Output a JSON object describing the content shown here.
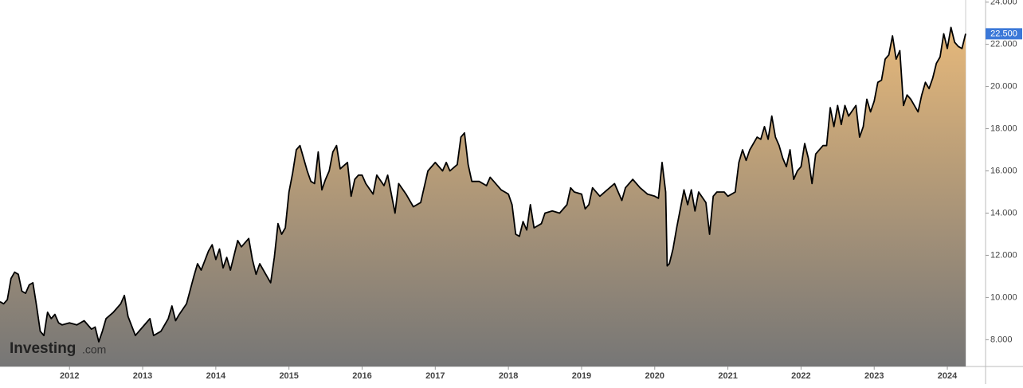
{
  "chart_data": {
    "type": "area",
    "x": [
      2011.05,
      2011.1,
      2011.15,
      2011.2,
      2011.25,
      2011.3,
      2011.35,
      2011.4,
      2011.45,
      2011.5,
      2011.55,
      2011.6,
      2011.65,
      2011.7,
      2011.75,
      2011.8,
      2011.85,
      2011.9,
      2012.0,
      2012.1,
      2012.2,
      2012.3,
      2012.35,
      2012.4,
      2012.45,
      2012.5,
      2012.6,
      2012.7,
      2012.75,
      2012.8,
      2012.9,
      2013.0,
      2013.1,
      2013.15,
      2013.25,
      2013.35,
      2013.4,
      2013.45,
      2013.5,
      2013.6,
      2013.7,
      2013.75,
      2013.8,
      2013.9,
      2013.95,
      2014.0,
      2014.05,
      2014.1,
      2014.15,
      2014.2,
      2014.3,
      2014.35,
      2014.45,
      2014.5,
      2014.55,
      2014.6,
      2014.7,
      2014.75,
      2014.8,
      2014.85,
      2014.9,
      2014.95,
      2015.0,
      2015.05,
      2015.1,
      2015.15,
      2015.25,
      2015.3,
      2015.35,
      2015.4,
      2015.45,
      2015.5,
      2015.55,
      2015.6,
      2015.65,
      2015.7,
      2015.8,
      2015.85,
      2015.9,
      2015.95,
      2016.0,
      2016.05,
      2016.15,
      2016.2,
      2016.3,
      2016.35,
      2016.45,
      2016.5,
      2016.6,
      2016.7,
      2016.8,
      2016.9,
      2017.0,
      2017.1,
      2017.15,
      2017.2,
      2017.3,
      2017.35,
      2017.4,
      2017.45,
      2017.5,
      2017.6,
      2017.7,
      2017.75,
      2017.8,
      2017.9,
      2018.0,
      2018.05,
      2018.1,
      2018.15,
      2018.2,
      2018.25,
      2018.3,
      2018.35,
      2018.45,
      2018.5,
      2018.6,
      2018.7,
      2018.8,
      2018.85,
      2018.9,
      2019.0,
      2019.05,
      2019.1,
      2019.15,
      2019.25,
      2019.35,
      2019.45,
      2019.55,
      2019.6,
      2019.7,
      2019.8,
      2019.9,
      2020.0,
      2020.05,
      2020.1,
      2020.15,
      2020.17,
      2020.2,
      2020.25,
      2020.3,
      2020.35,
      2020.4,
      2020.45,
      2020.5,
      2020.55,
      2020.6,
      2020.7,
      2020.75,
      2020.8,
      2020.85,
      2020.95,
      2021.0,
      2021.1,
      2021.15,
      2021.2,
      2021.25,
      2021.3,
      2021.4,
      2021.45,
      2021.5,
      2021.55,
      2021.6,
      2021.65,
      2021.7,
      2021.75,
      2021.8,
      2021.85,
      2021.9,
      2021.95,
      2022.0,
      2022.05,
      2022.1,
      2022.15,
      2022.2,
      2022.3,
      2022.35,
      2022.4,
      2022.45,
      2022.5,
      2022.55,
      2022.6,
      2022.65,
      2022.75,
      2022.8,
      2022.85,
      2022.9,
      2022.95,
      2023.0,
      2023.05,
      2023.1,
      2023.15,
      2023.2,
      2023.25,
      2023.3,
      2023.35,
      2023.4,
      2023.45,
      2023.5,
      2023.55,
      2023.6,
      2023.65,
      2023.7,
      2023.75,
      2023.8,
      2023.85,
      2023.9,
      2023.95,
      2024.0,
      2024.05,
      2024.1,
      2024.15,
      2024.2,
      2024.25
    ],
    "series": [
      {
        "color": "#000000",
        "fill_top": "#e6b87a",
        "fill_bottom": "#767676",
        "values": [
          9.8,
          9.7,
          9.9,
          10.9,
          11.2,
          11.1,
          10.3,
          10.2,
          10.6,
          10.7,
          9.6,
          8.4,
          8.2,
          9.3,
          9.0,
          9.2,
          8.8,
          8.7,
          8.8,
          8.7,
          8.9,
          8.5,
          8.6,
          7.9,
          8.4,
          9.0,
          9.3,
          9.7,
          10.1,
          9.1,
          8.2,
          8.6,
          9.0,
          8.2,
          8.4,
          9.0,
          9.6,
          8.9,
          9.2,
          9.7,
          11.0,
          11.6,
          11.3,
          12.2,
          12.5,
          11.8,
          12.3,
          11.4,
          11.9,
          11.3,
          12.7,
          12.4,
          12.8,
          11.8,
          11.1,
          11.6,
          11.0,
          10.7,
          11.9,
          13.5,
          13.0,
          13.3,
          15.0,
          15.9,
          17.0,
          17.2,
          16.0,
          15.5,
          15.4,
          16.9,
          15.1,
          15.6,
          16.0,
          16.9,
          17.2,
          16.1,
          16.4,
          14.8,
          15.6,
          15.8,
          15.8,
          15.4,
          14.9,
          15.8,
          15.3,
          15.8,
          14.0,
          15.4,
          14.9,
          14.3,
          14.5,
          16.0,
          16.4,
          16.0,
          16.4,
          16.0,
          16.3,
          17.6,
          17.8,
          16.3,
          15.5,
          15.5,
          15.3,
          15.7,
          15.5,
          15.1,
          14.9,
          14.4,
          13.0,
          12.9,
          13.6,
          13.2,
          14.4,
          13.3,
          13.5,
          14.0,
          14.1,
          14.0,
          14.4,
          15.2,
          15.0,
          14.9,
          14.2,
          14.4,
          15.2,
          14.8,
          15.1,
          15.4,
          14.6,
          15.2,
          15.6,
          15.2,
          14.9,
          14.8,
          14.7,
          16.4,
          15.0,
          11.5,
          11.6,
          12.3,
          13.3,
          14.2,
          15.1,
          14.4,
          15.1,
          14.1,
          15.0,
          14.5,
          13.0,
          14.8,
          15.0,
          15.0,
          14.8,
          15.0,
          16.4,
          17.0,
          16.5,
          17.0,
          17.6,
          17.5,
          18.1,
          17.5,
          18.6,
          17.6,
          17.2,
          16.6,
          16.2,
          17.0,
          15.6,
          16.0,
          16.2,
          17.3,
          16.6,
          15.4,
          16.8,
          17.2,
          17.2,
          19.0,
          18.1,
          19.1,
          18.2,
          19.1,
          18.6,
          19.1,
          17.6,
          18.1,
          19.4,
          18.8,
          19.3,
          20.2,
          20.3,
          21.3,
          21.5,
          22.4,
          21.3,
          21.7,
          19.1,
          19.6,
          19.4,
          19.1,
          18.8,
          19.6,
          20.2,
          19.9,
          20.4,
          21.1,
          21.4,
          22.5,
          21.8,
          22.8,
          22.1,
          21.9,
          21.8,
          22.5
        ]
      }
    ],
    "xlim": [
      2011.05,
      2024.25
    ],
    "xticks": [
      2012,
      2013,
      2014,
      2015,
      2016,
      2017,
      2018,
      2019,
      2020,
      2021,
      2022,
      2023,
      2024
    ],
    "ylim": [
      6.73,
      24.1
    ],
    "yticks": [
      {
        "value": 8,
        "label": "8.000"
      },
      {
        "value": 10,
        "label": "10.000"
      },
      {
        "value": 12,
        "label": "12.000"
      },
      {
        "value": 14,
        "label": "14.000"
      },
      {
        "value": 16,
        "label": "16.000"
      },
      {
        "value": 18,
        "label": "18.000"
      },
      {
        "value": 20,
        "label": "20.000"
      },
      {
        "value": 22,
        "label": "22.000"
      },
      {
        "value": 24,
        "label": "24.000"
      }
    ],
    "current_value": 22.5,
    "current_value_label": "22.500",
    "current_color": "#3b78d8",
    "watermark": {
      "brand": "Investing",
      "suffix": ".com"
    }
  }
}
